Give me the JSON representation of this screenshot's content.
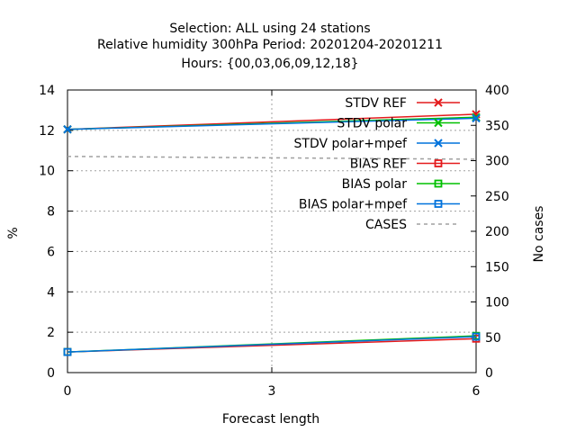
{
  "chart_data": {
    "type": "line",
    "title": [
      "Selection: ALL using    24 stations",
      "Relative humidity 300hPa   Period: 20201204-20201211",
      "Hours: {00,03,06,09,12,18}"
    ],
    "xlabel": "Forecast length",
    "ylabel": "%",
    "y2label": "No cases",
    "x": [
      0,
      6
    ],
    "xticks": [
      "0",
      "3",
      "6"
    ],
    "xlim": [
      0,
      6
    ],
    "ylim": [
      0,
      14
    ],
    "yticks": [
      "0",
      "2",
      "4",
      "6",
      "8",
      "10",
      "12",
      "14"
    ],
    "y2lim": [
      0,
      400
    ],
    "y2ticks": [
      "0",
      "50",
      "100",
      "150",
      "200",
      "250",
      "300",
      "350",
      "400"
    ],
    "grid": true,
    "legend_position": "top-right",
    "series": [
      {
        "name": "STDV REF",
        "color": "#e41a1c",
        "marker": "x",
        "axis": "y",
        "values": [
          12.05,
          12.8
        ]
      },
      {
        "name": "STDV polar",
        "color": "#00c000",
        "marker": "x",
        "axis": "y",
        "values": [
          12.05,
          12.65
        ]
      },
      {
        "name": "STDV polar+mpef",
        "color": "#0072dc",
        "marker": "x",
        "axis": "y",
        "values": [
          12.05,
          12.6
        ]
      },
      {
        "name": "BIAS REF",
        "color": "#e41a1c",
        "marker": "square",
        "axis": "y",
        "values": [
          1.02,
          1.68
        ]
      },
      {
        "name": "BIAS polar",
        "color": "#00c000",
        "marker": "square",
        "axis": "y",
        "values": [
          1.02,
          1.82
        ]
      },
      {
        "name": "BIAS polar+mpef",
        "color": "#0072dc",
        "marker": "square",
        "axis": "y",
        "values": [
          1.02,
          1.78
        ]
      },
      {
        "name": "CASES",
        "color": "#a0a0a0",
        "marker": "none",
        "dashed": true,
        "axis": "y2",
        "values": [
          306,
          302
        ]
      }
    ]
  }
}
